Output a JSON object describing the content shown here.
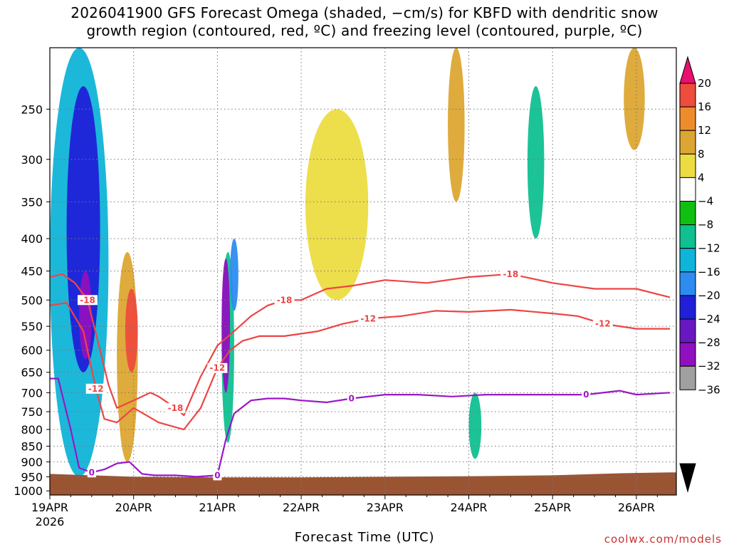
{
  "title": {
    "line1": "2026041900 GFS Forecast Omega (shaded, −cm/s) for KBFD with dendritic snow",
    "line2": "growth region (contoured, red, ºC) and freezing level (contoured, purple, ºC)"
  },
  "credit": "coolwx.com/models",
  "colors": {
    "terrain": "#9b5432",
    "isotherm_red": "#ee4444",
    "freezing_purple": "#9a16c8",
    "grid": "#777777"
  },
  "chart_data": {
    "type": "heatmap",
    "xlabel": "Forecast Time (UTC)",
    "x_ticks": [
      "19APR",
      "20APR",
      "21APR",
      "22APR",
      "23APR",
      "24APR",
      "25APR",
      "26APR"
    ],
    "x_first_tick_year": "2026",
    "x_range_days": [
      0,
      7.4
    ],
    "y_ticks": [
      250,
      300,
      350,
      400,
      450,
      500,
      550,
      600,
      650,
      700,
      750,
      800,
      850,
      900,
      950,
      1000
    ],
    "y_range_hPa": [
      200,
      1015
    ],
    "y_scale": "log-pressure",
    "grid": true,
    "colorbar": {
      "levels": [
        "20",
        "16",
        "12",
        "8",
        "4",
        "−4",
        "−8",
        "−12",
        "−16",
        "−20",
        "−24",
        "−28",
        "−32",
        "−36"
      ],
      "colors": [
        "#e8106e",
        "#ee4c3c",
        "#ee8c2c",
        "#dca632",
        "#ecdc42",
        "#ffffff",
        "#10c010",
        "#10c090",
        "#10b4d8",
        "#2c8cf0",
        "#2020d8",
        "#6818c0",
        "#9010c0",
        "#a0a0a0",
        "#000000"
      ],
      "placement": "right"
    },
    "shading_regions": [
      {
        "x": [
          0.0,
          0.7
        ],
        "p": [
          200,
          950
        ],
        "value": -12
      },
      {
        "x": [
          0.2,
          0.6
        ],
        "p": [
          230,
          650
        ],
        "value": -20
      },
      {
        "x": [
          0.35,
          0.5
        ],
        "p": [
          450,
          620
        ],
        "value": -28
      },
      {
        "x": [
          0.8,
          1.05
        ],
        "p": [
          420,
          900
        ],
        "value": 8
      },
      {
        "x": [
          0.9,
          1.05
        ],
        "p": [
          480,
          650
        ],
        "value": 16
      },
      {
        "x": [
          2.05,
          2.2
        ],
        "p": [
          420,
          840
        ],
        "value": -8
      },
      {
        "x": [
          2.05,
          2.15
        ],
        "p": [
          430,
          700
        ],
        "value": -28
      },
      {
        "x": [
          2.15,
          2.25
        ],
        "p": [
          400,
          520
        ],
        "value": -16
      },
      {
        "x": [
          3.05,
          3.8
        ],
        "p": [
          250,
          500
        ],
        "value": 4
      },
      {
        "x": [
          4.75,
          4.95
        ],
        "p": [
          200,
          350
        ],
        "value": 8
      },
      {
        "x": [
          5.0,
          5.15
        ],
        "p": [
          700,
          890
        ],
        "value": -8
      },
      {
        "x": [
          5.7,
          5.9
        ],
        "p": [
          230,
          400
        ],
        "value": -8
      },
      {
        "x": [
          6.85,
          7.1
        ],
        "p": [
          200,
          290
        ],
        "value": 8
      }
    ],
    "series": [
      {
        "name": "-18",
        "color": "red",
        "x": [
          0.0,
          0.15,
          0.3,
          0.45,
          0.6,
          0.7,
          0.8,
          1.0,
          1.2,
          1.3,
          1.5,
          1.6,
          1.8,
          2.0,
          2.2,
          2.4,
          2.6,
          2.8,
          3.0,
          3.3,
          3.6,
          4.0,
          4.5,
          5.0,
          5.5,
          6.0,
          6.5,
          7.0,
          7.4
        ],
        "p": [
          460,
          455,
          470,
          500,
          600,
          680,
          740,
          720,
          700,
          710,
          740,
          760,
          660,
          590,
          560,
          530,
          510,
          500,
          500,
          480,
          475,
          465,
          470,
          460,
          455,
          470,
          480,
          480,
          495
        ]
      },
      {
        "name": "-12",
        "color": "red",
        "x": [
          0.0,
          0.2,
          0.4,
          0.55,
          0.65,
          0.8,
          1.0,
          1.3,
          1.6,
          1.8,
          2.0,
          2.15,
          2.3,
          2.5,
          2.8,
          3.2,
          3.5,
          3.8,
          4.2,
          4.6,
          5.0,
          5.5,
          6.0,
          6.3,
          6.6,
          7.0,
          7.4
        ],
        "p": [
          510,
          505,
          560,
          690,
          770,
          780,
          740,
          780,
          800,
          740,
          640,
          600,
          580,
          570,
          570,
          560,
          545,
          535,
          530,
          520,
          522,
          518,
          525,
          530,
          545,
          555,
          555
        ]
      },
      {
        "name": "0",
        "color": "purple",
        "x": [
          0.0,
          0.1,
          0.25,
          0.35,
          0.5,
          0.65,
          0.8,
          0.95,
          1.1,
          1.25,
          1.5,
          1.75,
          2.0,
          2.1,
          2.2,
          2.4,
          2.6,
          2.8,
          3.0,
          3.3,
          3.6,
          4.0,
          4.4,
          4.8,
          5.2,
          5.6,
          6.0,
          6.4,
          6.8,
          7.0,
          7.4
        ],
        "p": [
          665,
          665,
          800,
          920,
          935,
          925,
          905,
          900,
          940,
          945,
          945,
          950,
          945,
          830,
          755,
          720,
          715,
          715,
          720,
          725,
          715,
          705,
          705,
          710,
          705,
          705,
          705,
          705,
          695,
          705,
          700
        ]
      }
    ],
    "terrain_surface": {
      "x": [
        0.0,
        1.0,
        2.0,
        3.0,
        4.0,
        5.0,
        6.0,
        6.8,
        7.4
      ],
      "p": [
        940,
        950,
        952,
        952,
        950,
        948,
        945,
        938,
        935
      ]
    }
  }
}
